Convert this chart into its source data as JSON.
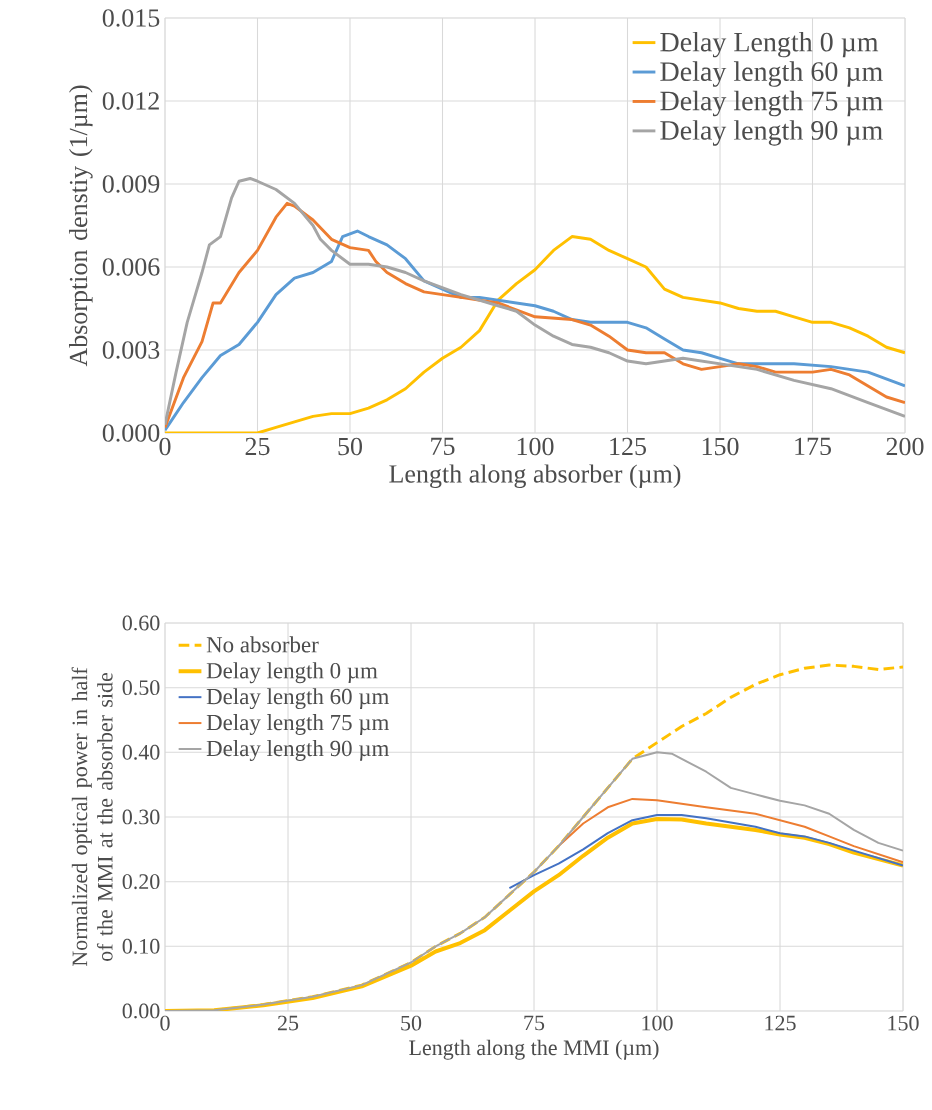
{
  "chart_data": [
    {
      "type": "line",
      "xlabel": "Length along absorber (µm)",
      "ylabel": "Absorption denstiy (1/µm)",
      "xlim": [
        0,
        200
      ],
      "xticks": [
        0,
        25,
        50,
        75,
        100,
        125,
        150,
        175,
        200
      ],
      "ylim": [
        0,
        0.015
      ],
      "yticks": [
        {
          "value": 0,
          "label": "0.000"
        },
        {
          "value": 0.003,
          "label": "0.003"
        },
        {
          "value": 0.006,
          "label": "0.006"
        },
        {
          "value": 0.009,
          "label": "0.009"
        },
        {
          "value": 0.012,
          "label": "0.012"
        },
        {
          "value": 0.015,
          "label": "0.015"
        }
      ],
      "grid": true,
      "legend": "top right",
      "series": [
        {
          "name": "Delay Length 0 µm",
          "color": "#ffc000",
          "x": [
            0,
            25,
            30,
            35,
            40,
            45,
            50,
            55,
            60,
            65,
            70,
            75,
            80,
            85,
            90,
            95,
            100,
            105,
            110,
            115,
            120,
            125,
            130,
            135,
            140,
            145,
            150,
            155,
            160,
            165,
            170,
            175,
            180,
            185,
            190,
            195,
            200
          ],
          "values": [
            0,
            0,
            0.0002,
            0.0004,
            0.0006,
            0.0007,
            0.0007,
            0.0009,
            0.0012,
            0.0016,
            0.0022,
            0.0027,
            0.0031,
            0.0037,
            0.0048,
            0.0054,
            0.0059,
            0.0066,
            0.0071,
            0.007,
            0.0066,
            0.0063,
            0.006,
            0.0052,
            0.0049,
            0.0048,
            0.0047,
            0.0045,
            0.0044,
            0.0044,
            0.0042,
            0.004,
            0.004,
            0.0038,
            0.0035,
            0.0031,
            0.0029
          ]
        },
        {
          "name": "Delay length 60 µm",
          "color": "#5b9bd5",
          "x": [
            0,
            2,
            5,
            10,
            15,
            20,
            25,
            30,
            35,
            40,
            45,
            48,
            52,
            55,
            60,
            65,
            70,
            75,
            80,
            85,
            90,
            100,
            105,
            110,
            115,
            125,
            130,
            135,
            140,
            145,
            150,
            155,
            170,
            180,
            190,
            200
          ],
          "values": [
            0.0001,
            0.0005,
            0.0011,
            0.002,
            0.0028,
            0.0032,
            0.004,
            0.005,
            0.0056,
            0.0058,
            0.0062,
            0.0071,
            0.0073,
            0.0071,
            0.0068,
            0.0063,
            0.0055,
            0.0052,
            0.0049,
            0.0049,
            0.0048,
            0.0046,
            0.0044,
            0.0041,
            0.004,
            0.004,
            0.0038,
            0.0034,
            0.003,
            0.0029,
            0.0027,
            0.0025,
            0.0025,
            0.0024,
            0.0022,
            0.0017
          ]
        },
        {
          "name": "Delay length 75 µm",
          "color": "#ed7d31",
          "x": [
            0,
            5,
            10,
            13,
            15,
            20,
            25,
            30,
            33,
            35,
            40,
            45,
            50,
            55,
            57,
            60,
            65,
            70,
            80,
            90,
            100,
            110,
            115,
            120,
            125,
            130,
            135,
            140,
            145,
            150,
            155,
            160,
            165,
            175,
            180,
            185,
            190,
            195,
            200
          ],
          "values": [
            0.0002,
            0.002,
            0.0033,
            0.0047,
            0.0047,
            0.0058,
            0.0066,
            0.0078,
            0.0083,
            0.0082,
            0.0077,
            0.007,
            0.0067,
            0.0066,
            0.0062,
            0.0058,
            0.0054,
            0.0051,
            0.0049,
            0.0047,
            0.0042,
            0.0041,
            0.0039,
            0.0035,
            0.003,
            0.0029,
            0.0029,
            0.0025,
            0.0023,
            0.0024,
            0.0025,
            0.0024,
            0.0022,
            0.0022,
            0.0023,
            0.0021,
            0.0017,
            0.0013,
            0.0011
          ]
        },
        {
          "name": "Delay length 90 µm",
          "color": "#a5a5a5",
          "x": [
            0,
            3,
            6,
            10,
            12,
            15,
            18,
            20,
            23,
            25,
            30,
            35,
            40,
            42,
            45,
            50,
            55,
            60,
            65,
            70,
            80,
            90,
            95,
            100,
            105,
            110,
            115,
            120,
            125,
            130,
            135,
            140,
            145,
            150,
            155,
            160,
            170,
            180,
            190,
            200
          ],
          "values": [
            0.0003,
            0.0022,
            0.004,
            0.0058,
            0.0068,
            0.0071,
            0.0085,
            0.0091,
            0.0092,
            0.0091,
            0.0088,
            0.0083,
            0.0075,
            0.007,
            0.0066,
            0.0061,
            0.0061,
            0.006,
            0.0058,
            0.0055,
            0.005,
            0.0046,
            0.0044,
            0.0039,
            0.0035,
            0.0032,
            0.0031,
            0.0029,
            0.0026,
            0.0025,
            0.0026,
            0.0027,
            0.0026,
            0.0025,
            0.0024,
            0.0023,
            0.0019,
            0.0016,
            0.0011,
            0.0006
          ]
        }
      ]
    },
    {
      "type": "line",
      "xlabel": "Length along the MMI (µm)",
      "ylabel": "Normalized optical power in half of the MMI at the absorber side",
      "xlim": [
        0,
        150
      ],
      "xticks": [
        0,
        25,
        50,
        75,
        100,
        125,
        150
      ],
      "ylim": [
        0,
        0.6
      ],
      "yticks": [
        {
          "value": 0,
          "label": "0.00"
        },
        {
          "value": 0.1,
          "label": "0.10"
        },
        {
          "value": 0.2,
          "label": "0.20"
        },
        {
          "value": 0.3,
          "label": "0.30"
        },
        {
          "value": 0.4,
          "label": "0.40"
        },
        {
          "value": 0.5,
          "label": "0.50"
        },
        {
          "value": 0.6,
          "label": "0.60"
        }
      ],
      "grid": true,
      "legend": "top left",
      "series": [
        {
          "name": "No absorber",
          "color": "#ffc000",
          "line_style": "dashed",
          "x": [
            0,
            10,
            20,
            30,
            40,
            50,
            55,
            60,
            65,
            70,
            75,
            80,
            85,
            90,
            95,
            100,
            105,
            110,
            115,
            120,
            125,
            130,
            135,
            140,
            145,
            150
          ],
          "values": [
            0,
            0.001,
            0.01,
            0.022,
            0.04,
            0.075,
            0.1,
            0.12,
            0.145,
            0.18,
            0.215,
            0.255,
            0.3,
            0.345,
            0.39,
            0.415,
            0.44,
            0.46,
            0.485,
            0.505,
            0.52,
            0.53,
            0.535,
            0.533,
            0.528,
            0.532
          ]
        },
        {
          "name": "Delay length 0 µm",
          "color": "#ffc000",
          "x": [
            0,
            10,
            20,
            30,
            40,
            50,
            55,
            60,
            65,
            70,
            75,
            80,
            85,
            90,
            95,
            100,
            105,
            110,
            120,
            125,
            130,
            135,
            140,
            150
          ],
          "values": [
            0,
            0.001,
            0.009,
            0.02,
            0.038,
            0.07,
            0.092,
            0.105,
            0.125,
            0.155,
            0.185,
            0.21,
            0.24,
            0.268,
            0.29,
            0.297,
            0.296,
            0.29,
            0.28,
            0.273,
            0.268,
            0.258,
            0.245,
            0.225
          ]
        },
        {
          "name": "Delay length 60 µm",
          "color": "#4472c4",
          "x": [
            70,
            75,
            80,
            85,
            90,
            95,
            100,
            105,
            110,
            120,
            125,
            130,
            135,
            140,
            150
          ],
          "values": [
            0.19,
            0.21,
            0.228,
            0.25,
            0.275,
            0.295,
            0.303,
            0.303,
            0.298,
            0.285,
            0.275,
            0.27,
            0.26,
            0.248,
            0.225
          ]
        },
        {
          "name": "Delay length 75 µm",
          "color": "#ed7d31",
          "x": [
            80,
            85,
            90,
            95,
            100,
            110,
            120,
            125,
            130,
            135,
            140,
            150
          ],
          "values": [
            0.255,
            0.29,
            0.315,
            0.328,
            0.326,
            0.315,
            0.305,
            0.295,
            0.285,
            0.27,
            0.255,
            0.23
          ]
        },
        {
          "name": "Delay length 90 µm",
          "color": "#a5a5a5",
          "x": [
            0,
            10,
            20,
            30,
            40,
            50,
            55,
            60,
            65,
            70,
            75,
            80,
            85,
            90,
            95,
            100,
            103,
            110,
            115,
            120,
            125,
            130,
            135,
            140,
            145,
            150
          ],
          "values": [
            0,
            0.001,
            0.01,
            0.022,
            0.04,
            0.075,
            0.1,
            0.12,
            0.145,
            0.18,
            0.215,
            0.255,
            0.3,
            0.345,
            0.39,
            0.4,
            0.398,
            0.37,
            0.345,
            0.335,
            0.325,
            0.318,
            0.305,
            0.28,
            0.26,
            0.248
          ]
        }
      ]
    }
  ]
}
